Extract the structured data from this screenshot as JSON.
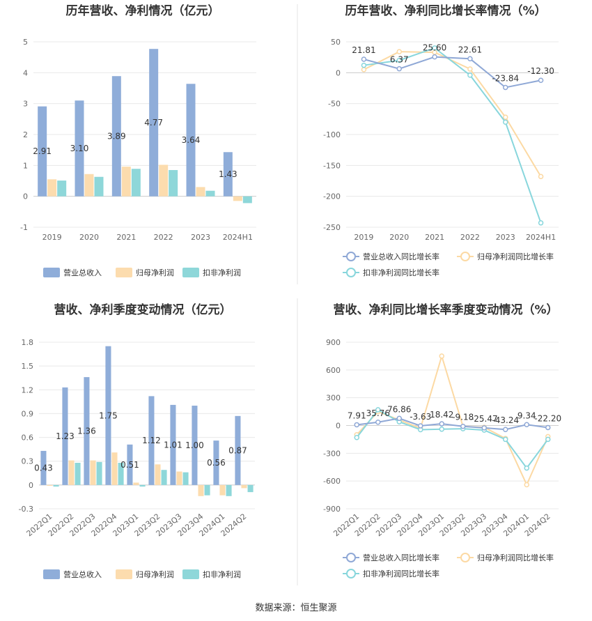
{
  "source": "数据来源：恒生聚源",
  "colors": {
    "revenue": "#8fadd9",
    "net": "#fcdcae",
    "deducted": "#8ed7d9",
    "revenue_line": "#8fa8d6",
    "net_line": "#fcd9a3",
    "deducted_line": "#88d6dc"
  },
  "chart_data": [
    {
      "type": "bar",
      "title": "历年营收、净利情况（亿元）",
      "categories": [
        "2019",
        "2020",
        "2021",
        "2022",
        "2023",
        "2024H1"
      ],
      "ylim": [
        -1,
        5
      ],
      "yticks": [
        -1,
        0,
        1,
        2,
        3,
        4,
        5
      ],
      "series": [
        {
          "name": "营业总收入",
          "values": [
            2.91,
            3.1,
            3.89,
            4.77,
            3.64,
            1.43
          ]
        },
        {
          "name": "归母净利润",
          "values": [
            0.55,
            0.72,
            0.96,
            1.02,
            0.3,
            -0.15
          ]
        },
        {
          "name": "扣非净利润",
          "values": [
            0.51,
            0.63,
            0.89,
            0.85,
            0.18,
            -0.22
          ]
        }
      ],
      "data_labels": [
        "2.91",
        "3.10",
        "3.89",
        "4.77",
        "3.64",
        "1.43"
      ],
      "legend": "bottom"
    },
    {
      "type": "line",
      "title": "历年营收、净利同比增长率情况（%）",
      "categories": [
        "2019",
        "2020",
        "2021",
        "2022",
        "2023",
        "2024H1"
      ],
      "ylim": [
        -250,
        50
      ],
      "yticks": [
        -250,
        -200,
        -150,
        -100,
        -50,
        0,
        50
      ],
      "series": [
        {
          "name": "营业总收入同比增长率",
          "values": [
            21.81,
            6.37,
            25.6,
            22.61,
            -23.84,
            -12.3
          ]
        },
        {
          "name": "归母净利润同比增长率",
          "values": [
            5,
            34,
            33,
            6,
            -72,
            -168
          ]
        },
        {
          "name": "扣非净利润同比增长率",
          "values": [
            12,
            20,
            40,
            -4,
            -80,
            -243
          ]
        }
      ],
      "data_labels": [
        "21.81",
        "6.37",
        "25.60",
        "22.61",
        "-23.84",
        "-12.30"
      ],
      "legend": "bottom"
    },
    {
      "type": "bar",
      "title": "营收、净利季度变动情况（亿元）",
      "categories": [
        "2022Q1",
        "2022Q2",
        "2022Q3",
        "2022Q4",
        "2023Q1",
        "2023Q2",
        "2023Q3",
        "2023Q4",
        "2024Q1",
        "2024Q2"
      ],
      "ylim": [
        -0.3,
        1.8
      ],
      "yticks": [
        -0.3,
        0,
        0.3,
        0.6,
        0.9,
        1.2,
        1.5,
        1.8
      ],
      "series": [
        {
          "name": "营业总收入",
          "values": [
            0.43,
            1.23,
            1.36,
            1.75,
            0.51,
            1.12,
            1.01,
            1.0,
            0.56,
            0.87
          ]
        },
        {
          "name": "归母净利润",
          "values": [
            -0.01,
            0.31,
            0.31,
            0.41,
            0.03,
            0.26,
            0.17,
            -0.14,
            -0.13,
            -0.04
          ]
        },
        {
          "name": "扣非净利润",
          "values": [
            -0.02,
            0.28,
            0.29,
            0.28,
            -0.02,
            0.19,
            0.16,
            -0.13,
            -0.14,
            -0.09
          ]
        }
      ],
      "data_labels": [
        "0.43",
        "1.23",
        "1.36",
        "1.75",
        "0.51",
        "1.12",
        "1.01",
        "1.00",
        "0.56",
        "0.87"
      ],
      "legend": "bottom"
    },
    {
      "type": "line",
      "title": "营收、净利同比增长率季度变动情况（%）",
      "categories": [
        "2022Q1",
        "2022Q2",
        "2022Q3",
        "2022Q4",
        "2023Q1",
        "2023Q2",
        "2023Q3",
        "2023Q4",
        "2024Q1",
        "2024Q2"
      ],
      "ylim": [
        -900,
        900
      ],
      "yticks": [
        -900,
        -600,
        -300,
        0,
        300,
        600,
        900
      ],
      "series": [
        {
          "name": "营业总收入同比增长率",
          "values": [
            7.91,
            35.76,
            76.86,
            -3.63,
            18.42,
            -9.18,
            -25.47,
            -43.24,
            9.34,
            -22.2
          ]
        },
        {
          "name": "归母净利润同比增长率",
          "values": [
            -100,
            150,
            60,
            -30,
            750,
            -10,
            -20,
            -140,
            -640,
            -120
          ]
        },
        {
          "name": "扣非净利润同比增长率",
          "values": [
            -130,
            170,
            40,
            -45,
            -40,
            -35,
            -50,
            -150,
            -460,
            -150
          ]
        }
      ],
      "data_labels": [
        "7.91",
        "35.76",
        "76.86",
        "-3.63",
        "18.42",
        "-9.18",
        "-25.47",
        "-43.24",
        "9.34",
        "-22.20"
      ],
      "legend": "bottom"
    }
  ]
}
